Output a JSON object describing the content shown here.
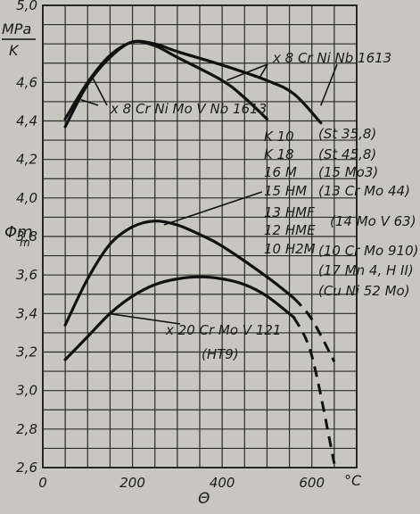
{
  "chart_data": {
    "type": "line",
    "xlabel": "Θ",
    "x_unit": "°C",
    "ylabel": "Φm",
    "y_unit": [
      "MPa",
      "K"
    ],
    "xlim": [
      0,
      700
    ],
    "ylim": [
      2.6,
      5.0
    ],
    "x_ticks": [
      0,
      200,
      400,
      600
    ],
    "x_tick_labels": [
      "0",
      "200",
      "400",
      "600"
    ],
    "y_ticks": [
      2.6,
      2.8,
      3.0,
      3.2,
      3.4,
      3.6,
      3.8,
      4.0,
      4.2,
      4.4,
      4.6,
      5.0
    ],
    "y_tick_labels": [
      "2,6",
      "2,8",
      "3,0",
      "3,2",
      "3,4",
      "3,6",
      "3,8",
      "4,0",
      "4,2",
      "4,4",
      "4,6",
      "5,0"
    ],
    "grid": true,
    "series": [
      {
        "name": "x 8 Cr Ni Nb 1613",
        "solid": [
          [
            50,
            4.41
          ],
          [
            100,
            4.6
          ],
          [
            150,
            4.74
          ],
          [
            200,
            4.81
          ],
          [
            250,
            4.8
          ],
          [
            300,
            4.76
          ],
          [
            400,
            4.69
          ],
          [
            500,
            4.61
          ],
          [
            560,
            4.54
          ],
          [
            620,
            4.39
          ]
        ],
        "dashed": []
      },
      {
        "name": "x 8 Cr Ni Mo V Nb 1613",
        "solid": [
          [
            50,
            4.37
          ],
          [
            100,
            4.59
          ],
          [
            150,
            4.73
          ],
          [
            200,
            4.81
          ],
          [
            250,
            4.79
          ],
          [
            300,
            4.73
          ],
          [
            400,
            4.61
          ],
          [
            450,
            4.52
          ],
          [
            500,
            4.41
          ]
        ],
        "dashed": []
      },
      {
        "name": "K 10, K 18, 16 M, 15 HM, 13 HMF, 12 HME, 10 H2M",
        "solid": [
          [
            50,
            3.34
          ],
          [
            100,
            3.58
          ],
          [
            150,
            3.76
          ],
          [
            200,
            3.85
          ],
          [
            250,
            3.88
          ],
          [
            300,
            3.86
          ],
          [
            350,
            3.81
          ],
          [
            400,
            3.75
          ],
          [
            500,
            3.59
          ],
          [
            560,
            3.48
          ]
        ],
        "dashed": [
          [
            560,
            3.48
          ],
          [
            600,
            3.37
          ],
          [
            650,
            3.15
          ]
        ]
      },
      {
        "name": "x 20 Cr Mo V 121",
        "solid": [
          [
            50,
            3.16
          ],
          [
            100,
            3.28
          ],
          [
            150,
            3.4
          ],
          [
            200,
            3.49
          ],
          [
            250,
            3.55
          ],
          [
            300,
            3.58
          ],
          [
            350,
            3.59
          ],
          [
            400,
            3.58
          ],
          [
            450,
            3.55
          ],
          [
            500,
            3.49
          ],
          [
            560,
            3.38
          ]
        ],
        "dashed": [
          [
            560,
            3.38
          ],
          [
            600,
            3.18
          ],
          [
            650,
            2.62
          ]
        ]
      }
    ],
    "labels_left": [
      "K 10",
      "K 18",
      "16 M",
      "15 HM",
      "13 HMF",
      "12 HME",
      "10 H2M"
    ],
    "labels_right": [
      "(St 35,8)",
      "(St 45,8)",
      "(15 Mo3)",
      "(13 Cr Mo 44)",
      "(14 Mo V 63)",
      "(10 Cr Mo 910)",
      "(17 Mn 4, H II)",
      "(Cu Ni 52 Mo)"
    ],
    "label_x20": [
      "x 20 Cr Mo V 121",
      "(HT9)"
    ],
    "label_1613a": "x 8 Cr Ni Nb 1613",
    "label_1613b": "x 8 Cr Ni Mo V Nb 1613"
  }
}
